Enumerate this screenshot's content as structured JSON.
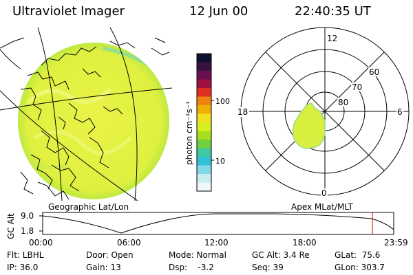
{
  "header": {
    "title": "Ultraviolet Imager",
    "date": "12 Jun 00",
    "time": "22:40:35 UT"
  },
  "colorbar": {
    "unit_label": "photon cm⁻²s⁻¹",
    "ticks": [
      "100",
      "10"
    ],
    "colors": [
      "#101030",
      "#3a1040",
      "#6a1050",
      "#a01040",
      "#e03020",
      "#f08010",
      "#f0b000",
      "#f0e020",
      "#d8f020",
      "#a8e020",
      "#70d040",
      "#40c8a0",
      "#30c0d8",
      "#80d8e8",
      "#c8ecf0",
      "#eef8fa"
    ]
  },
  "left_map": {
    "caption": "Geographic Lat/Lon",
    "fill_color": "#e6f24a",
    "edge_color": "#70e0a0"
  },
  "polar_plot": {
    "caption": "Apex MLat/MLT",
    "mlt_labels": {
      "top": "12",
      "left": "18",
      "right": "6",
      "bottom": "0"
    },
    "lat_labels": [
      "60",
      "70",
      "80"
    ],
    "blob_color": "#d8ef40"
  },
  "timeline": {
    "ylabel": "GC Alt",
    "ymax": "9.0",
    "ymin": "1.8",
    "xticks": [
      "00:00",
      "06:00",
      "12:00",
      "18:00",
      "23:59"
    ],
    "current_marker_color": "#cc0000"
  },
  "info": {
    "filter": "Flt: LBHL",
    "ip": "IP: 36.0",
    "door": "Door: Open",
    "gain": "Gain: 13",
    "mode": "Mode: Normal",
    "dsp": "Dsp:    -3.2",
    "gc_alt": "GC Alt: 3.4 Re",
    "seq": "Seq: 39",
    "glat": "GLat:  75.6",
    "glon": "GLon: 303.7"
  }
}
